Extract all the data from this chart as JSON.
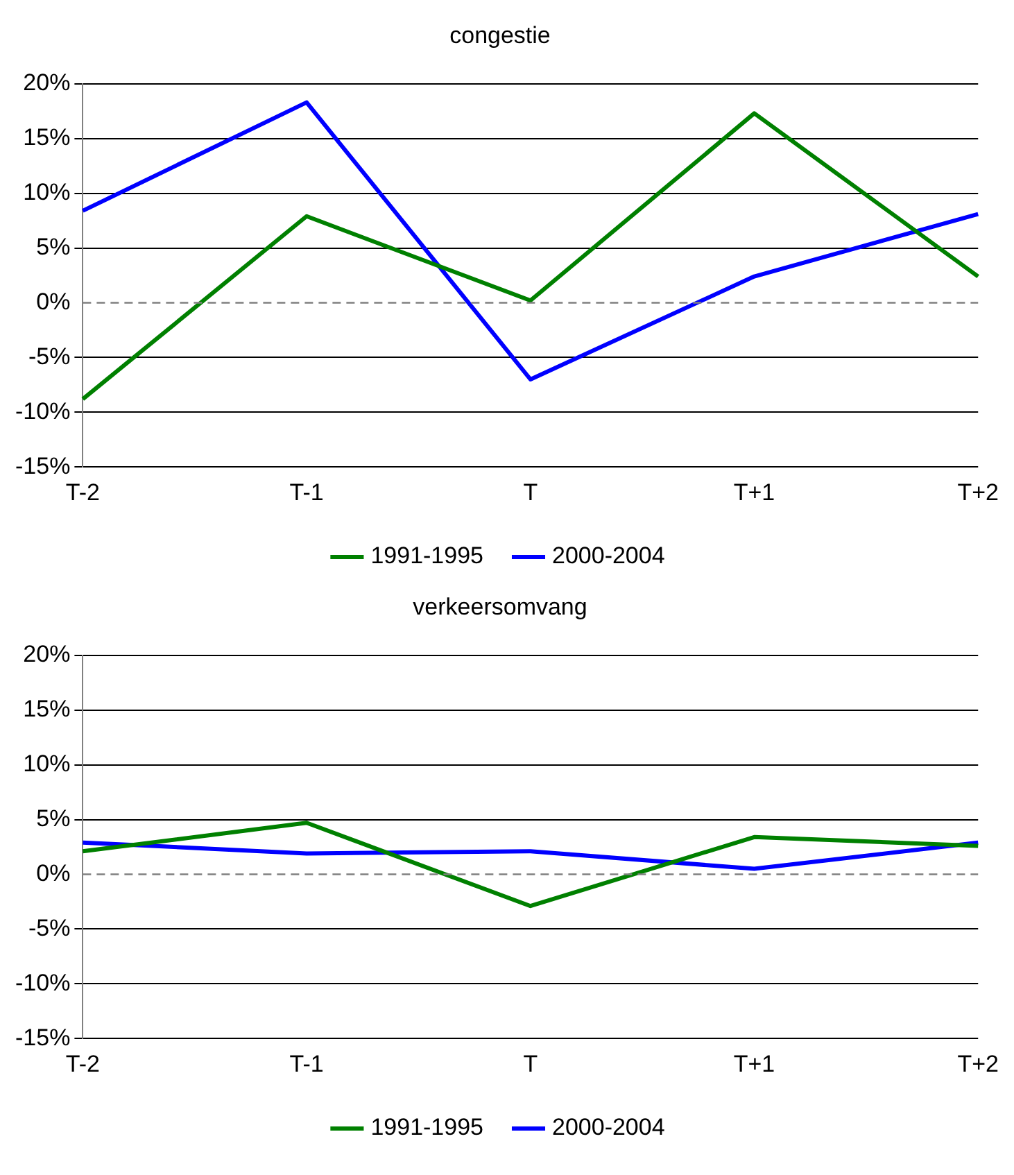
{
  "chart_data": [
    {
      "type": "line",
      "title": "congestie",
      "categories": [
        "T-2",
        "T-1",
        "T",
        "T+1",
        "T+2"
      ],
      "series": [
        {
          "name": "1991-1995",
          "color": "#008000",
          "values": [
            -8.8,
            7.9,
            0.2,
            17.3,
            2.4
          ]
        },
        {
          "name": "2000-2004",
          "color": "#0000ff",
          "values": [
            8.4,
            18.3,
            -7.0,
            2.4,
            8.1
          ]
        }
      ],
      "ylim": [
        -15,
        20
      ],
      "yticks": [
        {
          "value": -15,
          "label": "-15%"
        },
        {
          "value": -10,
          "label": "-10%"
        },
        {
          "value": -5,
          "label": "-5%"
        },
        {
          "value": 0,
          "label": "0%"
        },
        {
          "value": 5,
          "label": "5%"
        },
        {
          "value": 10,
          "label": "10%"
        },
        {
          "value": 15,
          "label": "15%"
        },
        {
          "value": 20,
          "label": "20%"
        }
      ],
      "grid": "y",
      "legend": "bottom",
      "marker": "none",
      "line_style": "solid",
      "ref_lines": [
        {
          "axis": "y",
          "value": 0,
          "color": "#808080",
          "line_style": "dashed"
        }
      ]
    },
    {
      "type": "line",
      "title": "verkeersomvang",
      "categories": [
        "T-2",
        "T-1",
        "T",
        "T+1",
        "T+2"
      ],
      "series": [
        {
          "name": "1991-1995",
          "color": "#008000",
          "values": [
            2.1,
            4.7,
            -2.9,
            3.4,
            2.6
          ]
        },
        {
          "name": "2000-2004",
          "color": "#0000ff",
          "values": [
            2.9,
            1.9,
            2.1,
            0.5,
            2.9
          ]
        }
      ],
      "ylim": [
        -15,
        20
      ],
      "yticks": [
        {
          "value": -15,
          "label": "-15%"
        },
        {
          "value": -10,
          "label": "-10%"
        },
        {
          "value": -5,
          "label": "-5%"
        },
        {
          "value": 0,
          "label": "0%"
        },
        {
          "value": 5,
          "label": "5%"
        },
        {
          "value": 10,
          "label": "10%"
        },
        {
          "value": 15,
          "label": "15%"
        },
        {
          "value": 20,
          "label": "20%"
        }
      ],
      "grid": "y",
      "legend": "bottom",
      "marker": "none",
      "line_style": "solid",
      "ref_lines": [
        {
          "axis": "y",
          "value": 0,
          "color": "#808080",
          "line_style": "dashed"
        }
      ]
    }
  ]
}
